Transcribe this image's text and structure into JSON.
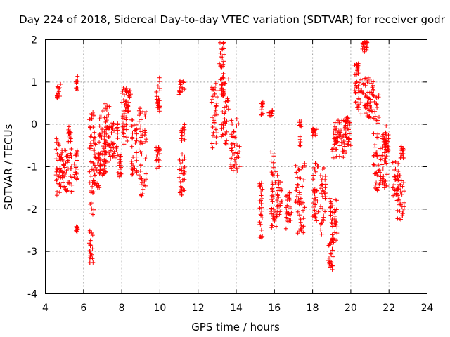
{
  "chart_data": {
    "type": "scatter",
    "title": "Day 224 of 2018, Sidereal Day-to-day VTEC variation (SDTVAR) for receiver godr",
    "xlabel": "GPS time / hours",
    "ylabel": "SDTVAR / TECUs",
    "xlim": [
      4,
      24
    ],
    "ylim": [
      -4,
      2
    ],
    "xticks": [
      "4",
      "6",
      "8",
      "10",
      "12",
      "14",
      "16",
      "18",
      "20",
      "22",
      "24"
    ],
    "yticks": [
      "-4",
      "-3",
      "-2",
      "-1",
      "0",
      "1",
      "2"
    ],
    "grid": true,
    "marker": "+",
    "color": "#ff0000",
    "series": [
      {
        "name": "SDTVAR",
        "segments": [
          [
            4.55,
            4.75,
            -1.7,
            -0.3
          ],
          [
            4.6,
            4.8,
            0.6,
            0.95
          ],
          [
            4.75,
            5.0,
            -1.5,
            -0.6
          ],
          [
            5.0,
            5.4,
            -1.6,
            -0.5
          ],
          [
            5.2,
            5.35,
            -0.5,
            0.0
          ],
          [
            5.6,
            5.7,
            0.8,
            1.15
          ],
          [
            5.6,
            5.7,
            -2.6,
            -2.4
          ],
          [
            5.5,
            5.7,
            -1.3,
            -0.6
          ],
          [
            6.3,
            6.5,
            -3.3,
            -2.5
          ],
          [
            6.3,
            6.6,
            -2.3,
            0.3
          ],
          [
            6.5,
            6.9,
            -1.5,
            -0.2
          ],
          [
            6.8,
            7.2,
            -1.2,
            0.2
          ],
          [
            7.0,
            7.4,
            -0.9,
            0.5
          ],
          [
            7.3,
            7.8,
            -0.9,
            0.1
          ],
          [
            7.8,
            8.0,
            -1.3,
            -0.7
          ],
          [
            8.0,
            8.3,
            -0.6,
            0.9
          ],
          [
            8.2,
            8.5,
            0.3,
            0.8
          ],
          [
            8.5,
            8.8,
            -1.2,
            0.2
          ],
          [
            8.9,
            9.3,
            -1.7,
            0.4
          ],
          [
            9.8,
            10.0,
            0.3,
            1.15
          ],
          [
            9.8,
            10.0,
            -1.1,
            -0.5
          ],
          [
            11.0,
            11.3,
            -1.7,
            -0.6
          ],
          [
            11.1,
            11.3,
            -0.4,
            0.0
          ],
          [
            11.0,
            11.3,
            0.7,
            1.05
          ],
          [
            12.7,
            13.0,
            -0.6,
            1.0
          ],
          [
            13.1,
            13.4,
            0.6,
            1.95
          ],
          [
            13.2,
            13.6,
            -0.5,
            1.1
          ],
          [
            13.7,
            14.2,
            -1.1,
            0.2
          ],
          [
            15.2,
            15.4,
            -2.7,
            -1.3
          ],
          [
            15.3,
            15.4,
            0.2,
            0.55
          ],
          [
            15.7,
            15.9,
            0.2,
            0.35
          ],
          [
            15.8,
            16.1,
            -2.5,
            -0.6
          ],
          [
            16.1,
            16.4,
            -2.2,
            -1.2
          ],
          [
            16.6,
            16.9,
            -2.5,
            -1.5
          ],
          [
            17.1,
            17.6,
            -2.6,
            -0.9
          ],
          [
            17.3,
            17.4,
            -0.6,
            0.1
          ],
          [
            18.0,
            18.2,
            -0.3,
            -0.1
          ],
          [
            18.0,
            18.3,
            -2.3,
            -0.9
          ],
          [
            18.4,
            18.7,
            -2.6,
            -0.9
          ],
          [
            18.8,
            19.1,
            -3.5,
            -2.7
          ],
          [
            18.9,
            19.3,
            -2.8,
            -1.7
          ],
          [
            19.0,
            19.4,
            -0.8,
            0.1
          ],
          [
            19.4,
            19.8,
            -0.8,
            0.1
          ],
          [
            19.7,
            20.0,
            -0.5,
            0.2
          ],
          [
            20.2,
            20.4,
            1.1,
            1.5
          ],
          [
            20.2,
            20.9,
            0.2,
            1.1
          ],
          [
            20.6,
            20.9,
            1.7,
            1.95
          ],
          [
            20.9,
            21.2,
            0.1,
            1.1
          ],
          [
            21.2,
            21.5,
            -1.6,
            0.7
          ],
          [
            21.5,
            21.9,
            -1.5,
            0.0
          ],
          [
            21.6,
            22.0,
            -0.7,
            -0.2
          ],
          [
            22.2,
            22.5,
            -1.8,
            -0.8
          ],
          [
            22.4,
            22.8,
            -2.3,
            -1.2
          ],
          [
            22.6,
            22.8,
            -0.8,
            -0.5
          ]
        ]
      }
    ]
  }
}
